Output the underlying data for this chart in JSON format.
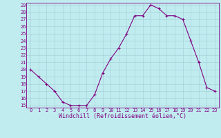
{
  "x": [
    0,
    1,
    2,
    3,
    4,
    5,
    6,
    7,
    8,
    9,
    10,
    11,
    12,
    13,
    14,
    15,
    16,
    17,
    18,
    19,
    20,
    21,
    22,
    23
  ],
  "y": [
    20,
    19,
    18,
    17,
    15.5,
    15,
    15,
    15,
    16.5,
    19.5,
    21.5,
    23,
    25,
    27.5,
    27.5,
    29,
    28.5,
    27.5,
    27.5,
    27,
    24,
    21,
    17.5,
    17
  ],
  "line_color": "#800080",
  "marker": "+",
  "marker_color": "#800080",
  "bg_color": "#c0ecf0",
  "grid_color": "#a0ccd4",
  "xlabel": "Windchill (Refroidissement éolien,°C)",
  "xlabel_color": "#800080",
  "tick_color": "#800080",
  "spine_color": "#800080",
  "ylim": [
    15,
    29
  ],
  "xlim": [
    0,
    23
  ],
  "yticks": [
    15,
    16,
    17,
    18,
    19,
    20,
    21,
    22,
    23,
    24,
    25,
    26,
    27,
    28,
    29
  ],
  "xticks": [
    0,
    1,
    2,
    3,
    4,
    5,
    6,
    7,
    8,
    9,
    10,
    11,
    12,
    13,
    14,
    15,
    16,
    17,
    18,
    19,
    20,
    21,
    22,
    23
  ],
  "tick_fontsize": 5.0,
  "xlabel_fontsize": 6.0,
  "linewidth": 0.8,
  "markersize": 3.5,
  "markeredgewidth": 0.8
}
